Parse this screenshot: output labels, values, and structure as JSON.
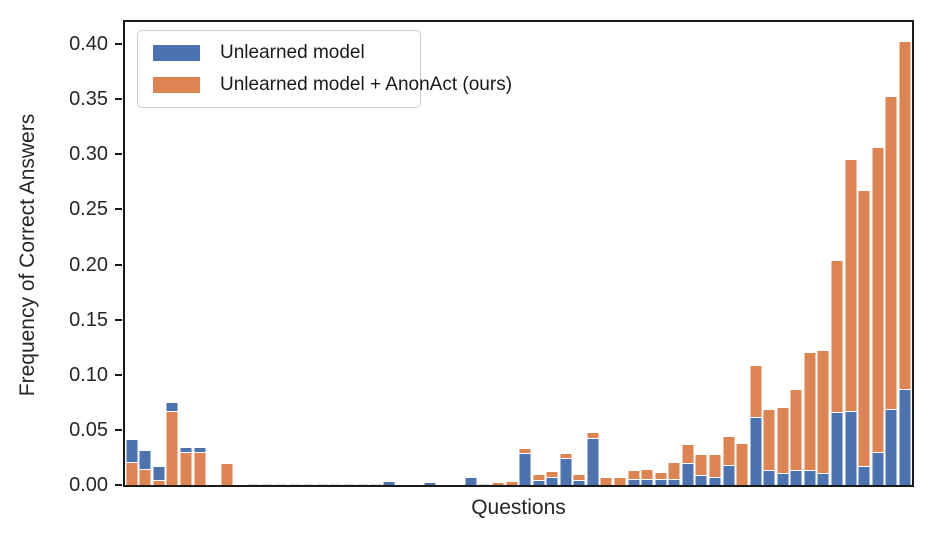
{
  "figure": {
    "background": "#ffffff",
    "frame_color": "#1a1a1a"
  },
  "chart_data": {
    "type": "bar",
    "title": "",
    "xlabel": "Questions",
    "ylabel": "Frequency of Correct Answers",
    "ylim": [
      0,
      0.42
    ],
    "yticks": [
      "0.00",
      "0.05",
      "0.10",
      "0.15",
      "0.20",
      "0.25",
      "0.30",
      "0.35",
      "0.40"
    ],
    "ytick_values": [
      0.0,
      0.05,
      0.1,
      0.15,
      0.2,
      0.25,
      0.3,
      0.35,
      0.4
    ],
    "x_tick_labels_shown": false,
    "grid": false,
    "legend_position": "upper left",
    "note": "Two overlapping bar series per question; shorter bar drawn in front of taller bar, both starting at y=0. White bar edges.",
    "series": [
      {
        "name": "Unlearned model",
        "color": "#4C72B0",
        "values": [
          0.041,
          0.031,
          0.016,
          0.074,
          0.034,
          0.034,
          0,
          0,
          0,
          0,
          0,
          0,
          0,
          0,
          0,
          0,
          0,
          0,
          0,
          0.003,
          0,
          0,
          0.0015,
          0,
          0,
          0.006,
          0,
          0,
          0,
          0.028,
          0.004,
          0.0065,
          0.024,
          0.004,
          0.042,
          0,
          0,
          0.005,
          0.005,
          0.005,
          0.005,
          0.019,
          0.008,
          0.006,
          0.017,
          0,
          0.061,
          0.013,
          0.01,
          0.013,
          0.013,
          0.01,
          0.065,
          0.066,
          0.016,
          0.029,
          0.068,
          0.086
        ]
      },
      {
        "name": "Unlearned model + AnonAct (ours)",
        "color": "#DD8452",
        "values": [
          0.02,
          0.014,
          0.0035,
          0.066,
          0.029,
          0.029,
          0,
          0.019,
          0,
          0.0008,
          0.0008,
          0.0008,
          0.0008,
          0.0008,
          0.0008,
          0.0008,
          0.0008,
          0.0008,
          0.0008,
          0,
          0,
          0,
          0,
          0,
          0,
          0,
          0.001,
          0.002,
          0.003,
          0.033,
          0.009,
          0.0115,
          0.028,
          0.009,
          0.047,
          0.0065,
          0.0065,
          0.0125,
          0.014,
          0.011,
          0.02,
          0.036,
          0.027,
          0.027,
          0.044,
          0.037,
          0.108,
          0.068,
          0.07,
          0.086,
          0.12,
          0.122,
          0.203,
          0.295,
          0.267,
          0.306,
          0.352,
          0.402
        ]
      }
    ]
  },
  "legend": {
    "items": [
      {
        "label": "Unlearned model",
        "color": "#4C72B0"
      },
      {
        "label": "Unlearned model + AnonAct (ours)",
        "color": "#DD8452"
      }
    ]
  },
  "axes": {
    "ylabel": "Frequency of Correct Answers",
    "xlabel": "Questions"
  }
}
